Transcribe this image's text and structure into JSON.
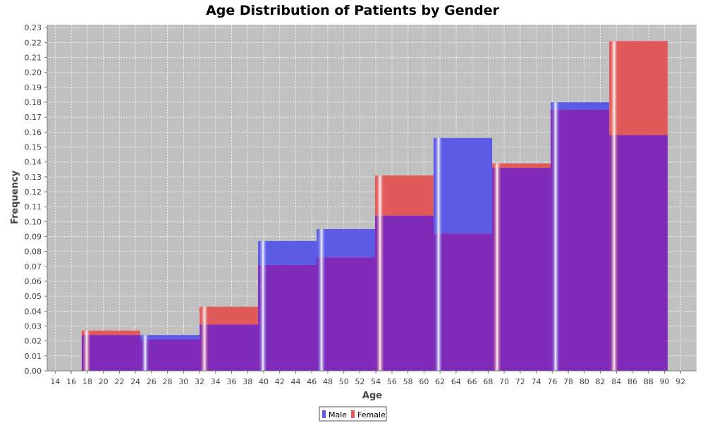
{
  "chart_data": {
    "type": "bar",
    "title": "Age Distribution of Patients by Gender",
    "xlabel": "Age",
    "ylabel": "Frequency",
    "xlim": [
      13,
      94
    ],
    "ylim": [
      0,
      0.232
    ],
    "x_ticks": [
      14,
      16,
      18,
      20,
      22,
      24,
      26,
      28,
      30,
      32,
      34,
      36,
      38,
      40,
      42,
      44,
      46,
      48,
      50,
      52,
      54,
      56,
      58,
      60,
      62,
      64,
      66,
      68,
      70,
      72,
      74,
      76,
      78,
      80,
      82,
      84,
      86,
      88,
      90,
      92
    ],
    "y_ticks": [
      0.0,
      0.01,
      0.02,
      0.03,
      0.04,
      0.05,
      0.06,
      0.07,
      0.08,
      0.09,
      0.1,
      0.11,
      0.12,
      0.13,
      0.14,
      0.15,
      0.16,
      0.17,
      0.18,
      0.19,
      0.2,
      0.21,
      0.22,
      0.23
    ],
    "grid": true,
    "legend_position": "bottom-center",
    "bins": [
      {
        "start": 17.3,
        "end": 24.6
      },
      {
        "start": 24.6,
        "end": 32.0
      },
      {
        "start": 32.0,
        "end": 39.3
      },
      {
        "start": 39.3,
        "end": 46.6
      },
      {
        "start": 46.6,
        "end": 53.9
      },
      {
        "start": 53.9,
        "end": 61.2
      },
      {
        "start": 61.2,
        "end": 68.5
      },
      {
        "start": 68.5,
        "end": 75.8
      },
      {
        "start": 75.8,
        "end": 83.1
      },
      {
        "start": 83.1,
        "end": 90.4
      }
    ],
    "series": [
      {
        "name": "Male",
        "color": "#5555ff",
        "values": [
          0.024,
          0.024,
          0.031,
          0.087,
          0.095,
          0.104,
          0.156,
          0.136,
          0.18,
          0.158
        ]
      },
      {
        "name": "Female",
        "color": "#ff5555",
        "values": [
          0.027,
          0.021,
          0.043,
          0.071,
          0.076,
          0.131,
          0.092,
          0.139,
          0.175,
          0.221
        ]
      }
    ]
  },
  "colors": {
    "plot_background": "#c0c0c0",
    "overlap": "#7f2ab8",
    "male": "#5b5be6",
    "female": "#e05a5a"
  }
}
